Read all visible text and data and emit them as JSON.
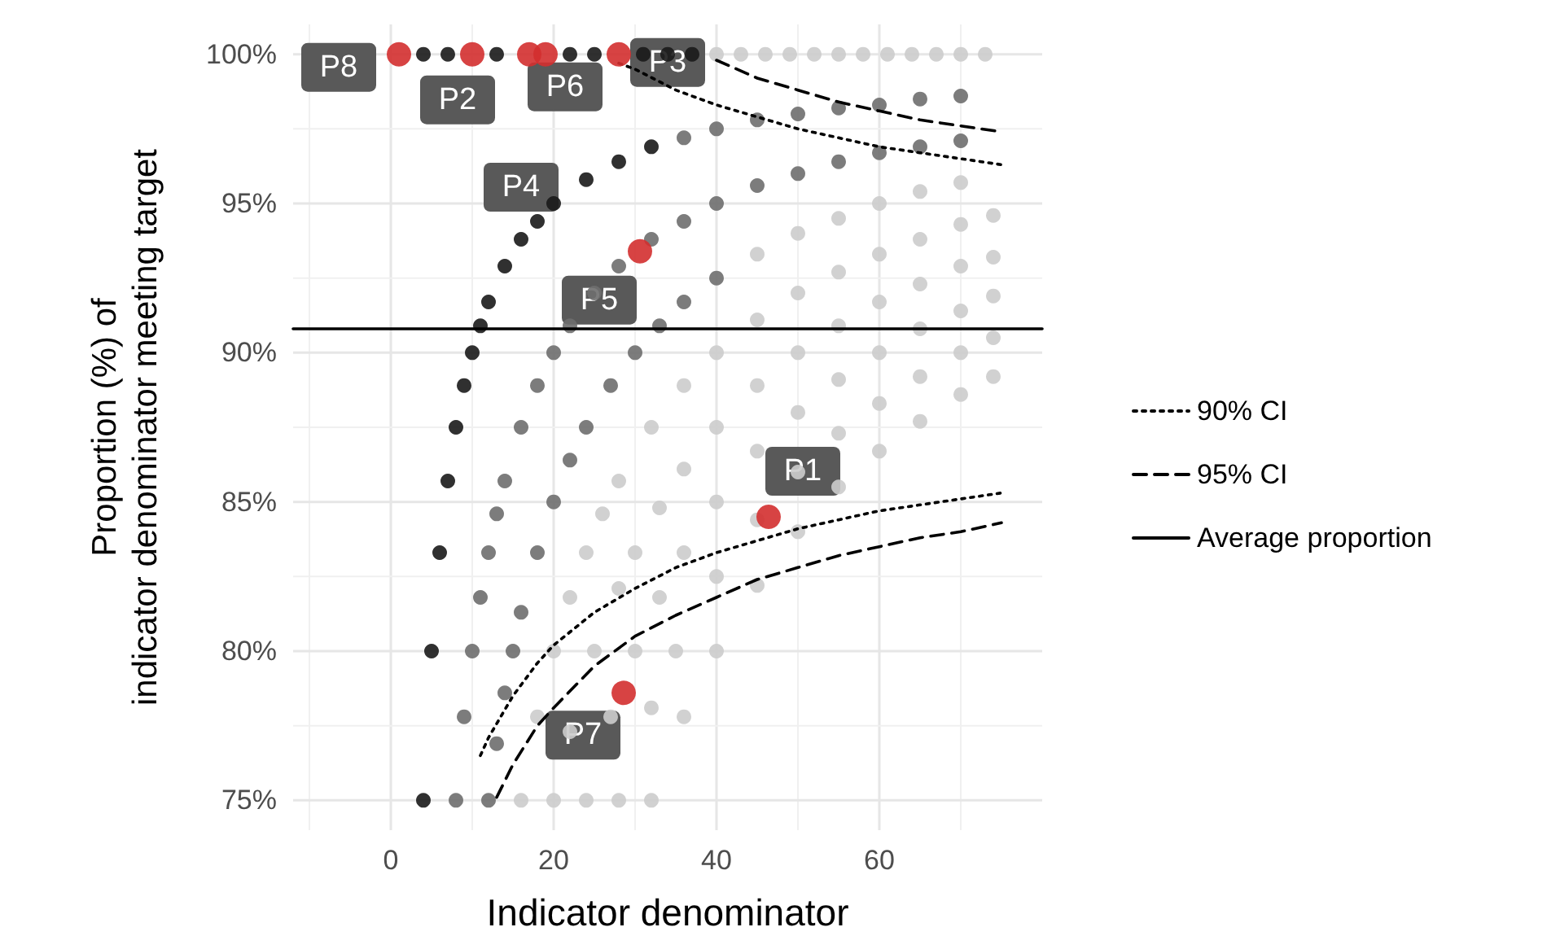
{
  "chart_data": {
    "type": "scatter",
    "xlabel": "Indicator denominator",
    "ylabel": "Proportion (%) of\nindicator denominator meeting target",
    "xlim": [
      -12,
      80
    ],
    "ylim": [
      74,
      101
    ],
    "xticks": [
      0,
      20,
      40,
      60
    ],
    "yticks": [
      {
        "value": 75,
        "label": "75%"
      },
      {
        "value": 80,
        "label": "80%"
      },
      {
        "value": 85,
        "label": "85%"
      },
      {
        "value": 90,
        "label": "90%"
      },
      {
        "value": 95,
        "label": "95%"
      },
      {
        "value": 100,
        "label": "100%"
      }
    ],
    "grid": true,
    "legend": "right",
    "marker": "circle",
    "series": [
      {
        "color": "#1a1a1a",
        "x": [
          4,
          7,
          13,
          22,
          25,
          31,
          34,
          37,
          4,
          5,
          6,
          7,
          8,
          9,
          10,
          11,
          12,
          14,
          16,
          18,
          20,
          24,
          28,
          32
        ],
        "values": [
          100,
          100,
          100,
          100,
          100,
          100,
          100,
          100,
          75,
          80,
          83.3,
          85.7,
          87.5,
          88.9,
          90,
          90.9,
          91.7,
          92.9,
          93.8,
          94.4,
          95,
          95.8,
          96.4,
          96.9
        ]
      },
      {
        "color": "#6e6e6e",
        "x": [
          36,
          40,
          45,
          50,
          55,
          60,
          65,
          70,
          8,
          9,
          10,
          11,
          12,
          13,
          14,
          16,
          18,
          20,
          22,
          25,
          28,
          32,
          36,
          40,
          45,
          50,
          55,
          60,
          65,
          70,
          12,
          13,
          14,
          15,
          16,
          18,
          20,
          22,
          24,
          27,
          30,
          33,
          36,
          40
        ],
        "values": [
          97.2,
          97.5,
          97.8,
          98,
          98.2,
          98.3,
          98.5,
          98.6,
          75,
          77.8,
          80,
          81.8,
          83.3,
          84.6,
          85.7,
          87.5,
          88.9,
          90,
          90.9,
          92,
          92.9,
          93.8,
          94.4,
          95,
          95.6,
          96,
          96.4,
          96.7,
          96.9,
          97.1,
          75,
          76.9,
          78.6,
          80,
          81.3,
          83.3,
          85,
          86.4,
          87.5,
          88.9,
          90,
          90.9,
          91.7,
          92.5
        ]
      },
      {
        "color": "#cccccc",
        "x": [
          40,
          43,
          46,
          49,
          52,
          55,
          58,
          61,
          64,
          67,
          70,
          73,
          45,
          50,
          55,
          60,
          65,
          70,
          16,
          18,
          20,
          22,
          24,
          26,
          28,
          32,
          36,
          40,
          45,
          50,
          55,
          60,
          65,
          70,
          74,
          20,
          22,
          25,
          28,
          30,
          33,
          36,
          40,
          45,
          50,
          55,
          60,
          65,
          70,
          74,
          24,
          27,
          30,
          33,
          36,
          40,
          45,
          50,
          55,
          60,
          65,
          70,
          74,
          28,
          32,
          35,
          40,
          45,
          50,
          55,
          60,
          65,
          70,
          74,
          32,
          36,
          40,
          45,
          50,
          55,
          60,
          65,
          70,
          74
        ],
        "values": [
          100,
          100,
          100,
          100,
          100,
          100,
          100,
          100,
          100,
          100,
          100,
          100,
          93.3,
          94,
          94.5,
          95,
          95.4,
          95.7,
          75,
          77.8,
          80,
          81.8,
          83.3,
          84.6,
          85.7,
          87.5,
          88.9,
          90,
          91.1,
          92,
          92.7,
          93.3,
          93.8,
          94.3,
          94.6,
          75,
          77.3,
          80,
          82.1,
          83.3,
          84.8,
          86.1,
          87.5,
          88.9,
          90,
          90.9,
          91.7,
          92.3,
          92.9,
          93.2,
          75,
          77.8,
          80,
          81.8,
          83.3,
          85,
          86.7,
          88,
          89.1,
          90,
          90.8,
          91.4,
          91.9,
          75,
          78.1,
          80,
          82.5,
          84.4,
          86,
          87.3,
          88.3,
          89.2,
          90,
          90.5,
          75,
          77.8,
          80,
          82.2,
          84,
          85.5,
          86.7,
          87.7,
          88.6,
          89.2
        ]
      },
      {
        "type": "line",
        "name": "90% CI",
        "color": "#000000",
        "line_style": "dotted",
        "marker": "none",
        "x": [
          11,
          12,
          15,
          18,
          20,
          25,
          30,
          35,
          40,
          45,
          50,
          55,
          60,
          65,
          70,
          75,
          null,
          28,
          30,
          35,
          40,
          45,
          50,
          55,
          60,
          65,
          70,
          75
        ],
        "values": [
          76.5,
          77.1,
          78.5,
          79.6,
          80.2,
          81.3,
          82.1,
          82.8,
          83.3,
          83.7,
          84.1,
          84.4,
          84.7,
          84.9,
          85.1,
          85.3,
          null,
          99.7,
          99.5,
          98.8,
          98.3,
          97.9,
          97.5,
          97.2,
          96.9,
          96.7,
          96.5,
          96.3
        ]
      },
      {
        "type": "line",
        "name": "95% CI",
        "color": "#000000",
        "line_style": "dashed",
        "marker": "none",
        "x": [
          13,
          15,
          18,
          20,
          25,
          30,
          35,
          40,
          45,
          50,
          55,
          60,
          65,
          70,
          75,
          null,
          40,
          45,
          50,
          55,
          60,
          65,
          70,
          75
        ],
        "values": [
          75.1,
          76.2,
          77.5,
          78.1,
          79.5,
          80.5,
          81.2,
          81.8,
          82.4,
          82.8,
          83.2,
          83.5,
          83.8,
          84,
          84.3,
          null,
          99.8,
          99.2,
          98.8,
          98.4,
          98.1,
          97.8,
          97.6,
          97.4
        ]
      },
      {
        "type": "line",
        "name": "Average proportion",
        "color": "#000000",
        "line_style": "solid",
        "marker": "none",
        "x": [
          -12,
          80
        ],
        "values": [
          90.8,
          90.8
        ]
      },
      {
        "color": "#d32f2f",
        "x": [
          1,
          10,
          17,
          19,
          28,
          30.6,
          46.4,
          28.6
        ],
        "values": [
          100,
          100,
          100,
          100,
          100,
          93.4,
          84.5,
          78.6
        ]
      }
    ],
    "annotations": [
      {
        "text": "P8",
        "x": 1,
        "y": 100
      },
      {
        "text": "P2",
        "x": 10,
        "y": 100
      },
      "P4",
      {
        "text": "P6",
        "x": 19,
        "y": 100
      },
      {
        "text": "P3",
        "x": 28,
        "y": 100
      },
      {
        "text": "P5",
        "x": 30.6,
        "y": 93.4
      },
      {
        "text": "P1",
        "x": 46.4,
        "y": 84.5
      },
      {
        "text": "P7",
        "x": 28.6,
        "y": 78.6
      }
    ]
  }
}
